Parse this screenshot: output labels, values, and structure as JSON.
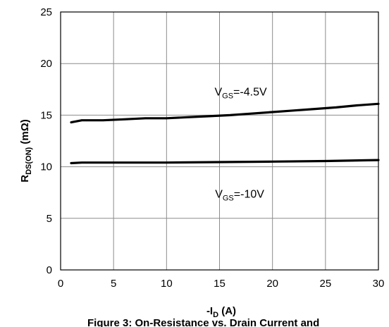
{
  "chart_data": {
    "type": "line",
    "xlabel": {
      "main": "-I",
      "sub": "D",
      "unit": " (A)"
    },
    "ylabel": {
      "main": "R",
      "sub": "DS(ON)",
      "unit": " (mΩ)"
    },
    "xlim": [
      0,
      30
    ],
    "ylim": [
      0,
      25
    ],
    "xticks": [
      0,
      5,
      10,
      15,
      20,
      25,
      30
    ],
    "yticks": [
      0,
      5,
      10,
      15,
      20,
      25
    ],
    "grid": true,
    "series": [
      {
        "name": "VGS=-4.5V",
        "x": [
          1,
          2,
          4,
          6,
          8,
          10,
          12,
          14,
          16,
          18,
          20,
          22,
          24,
          26,
          28,
          30
        ],
        "y": [
          14.3,
          14.5,
          14.5,
          14.6,
          14.7,
          14.7,
          14.8,
          14.9,
          15.0,
          15.15,
          15.3,
          15.45,
          15.6,
          15.75,
          15.95,
          16.1
        ]
      },
      {
        "name": "VGS=-10V",
        "x": [
          1,
          2,
          5,
          10,
          15,
          20,
          25,
          30
        ],
        "y": [
          10.35,
          10.4,
          10.4,
          10.4,
          10.45,
          10.5,
          10.55,
          10.65
        ]
      }
    ],
    "annotations": [
      {
        "main": "V",
        "sub": "GS",
        "rest": "=-4.5V",
        "x": 17,
        "y": 16.9
      },
      {
        "main": "V",
        "sub": "GS",
        "rest": "=-10V",
        "x": 16.9,
        "y": 7.0
      }
    ],
    "caption": "Figure 3: On-Resistance vs. Drain Current and"
  }
}
